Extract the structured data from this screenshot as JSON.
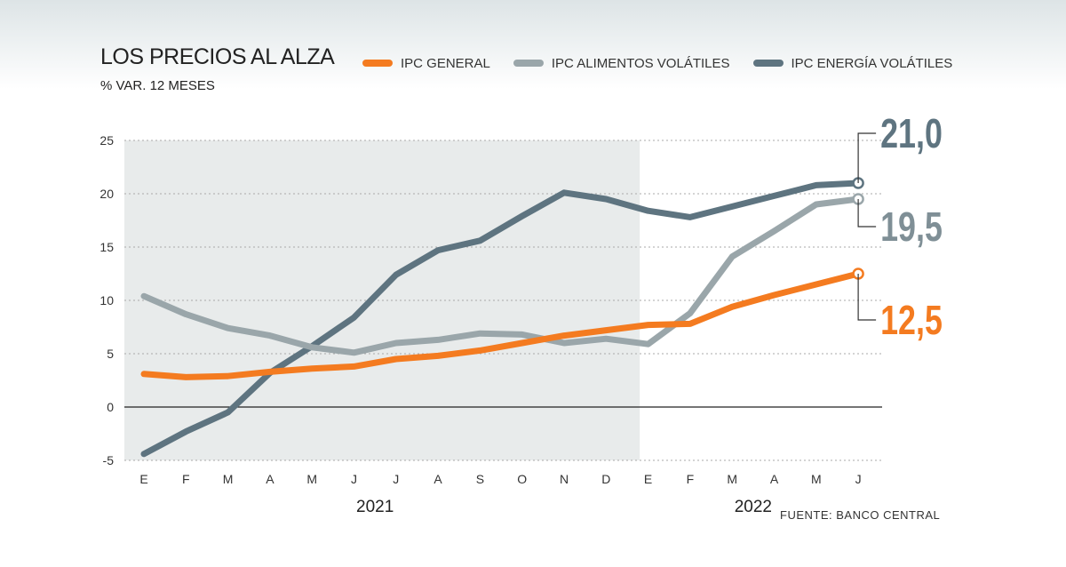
{
  "title": "LOS PRECIOS AL ALZA",
  "subtitle": "% VAR. 12 MESES",
  "source": "FUENTE: BANCO CENTRAL",
  "colors": {
    "general": "#f47b20",
    "alimentos": "#9aa6aa",
    "energia": "#5e7480",
    "shade": "#e8ebeb"
  },
  "chart_data": {
    "type": "line",
    "categories": [
      "E",
      "F",
      "M",
      "A",
      "M",
      "J",
      "J",
      "A",
      "S",
      "O",
      "N",
      "D",
      "E",
      "F",
      "M",
      "A",
      "M",
      "J"
    ],
    "years": [
      {
        "label": "2021",
        "start": 0,
        "end": 11
      },
      {
        "label": "2022",
        "start": 12,
        "end": 17
      }
    ],
    "shaded_range": [
      0,
      11.8
    ],
    "ylim": [
      -5,
      25
    ],
    "yticks": [
      "25",
      "20",
      "15",
      "10",
      "5",
      "0",
      "-5"
    ],
    "ytick_values": [
      25,
      20,
      15,
      10,
      5,
      0,
      -5
    ],
    "grid": true,
    "series": [
      {
        "name": "IPC GENERAL",
        "key": "general",
        "values": [
          3.1,
          2.8,
          2.9,
          3.3,
          3.6,
          3.8,
          4.5,
          4.8,
          5.3,
          6.0,
          6.7,
          7.2,
          7.7,
          7.8,
          9.4,
          10.5,
          11.5,
          12.5
        ],
        "end_label": "12,5"
      },
      {
        "name": "IPC ALIMENTOS VOLÁTILES",
        "key": "alimentos",
        "values": [
          10.4,
          8.7,
          7.4,
          6.7,
          5.6,
          5.1,
          6.0,
          6.3,
          6.9,
          6.8,
          6.0,
          6.4,
          5.9,
          8.8,
          14.1,
          16.5,
          19.0,
          19.5
        ],
        "end_label": "19,5"
      },
      {
        "name": "IPC ENERGÍA VOLÁTILES",
        "key": "energia",
        "values": [
          -4.4,
          -2.3,
          -0.5,
          3.2,
          5.7,
          8.4,
          12.4,
          14.7,
          15.6,
          17.9,
          20.1,
          19.5,
          18.4,
          17.8,
          18.8,
          19.8,
          20.8,
          21.0
        ],
        "end_label": "21,0"
      }
    ]
  }
}
